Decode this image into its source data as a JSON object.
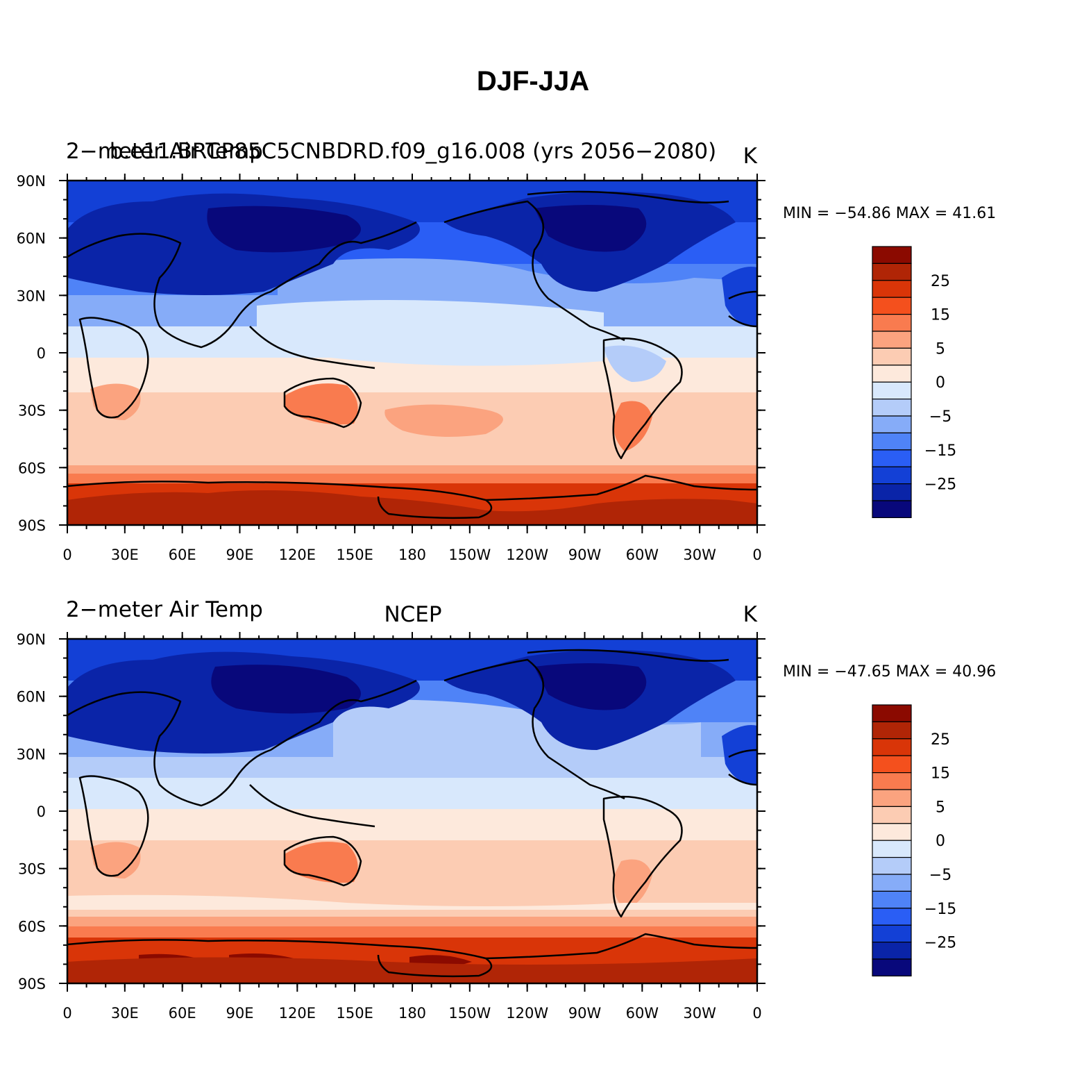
{
  "figure_title": "DJF-JJA",
  "colorscale": {
    "levels": [
      -30,
      -25,
      -20,
      -15,
      -10,
      -5,
      -2.5,
      0,
      2.5,
      5,
      10,
      15,
      20,
      25,
      30
    ],
    "colors": [
      "#08087b",
      "#0a24a8",
      "#1340d6",
      "#2a5ef5",
      "#4f83f7",
      "#86acf8",
      "#b4ccf9",
      "#d8e8fc",
      "#fde9dc",
      "#fcccb3",
      "#fba37f",
      "#f97b4f",
      "#f4501d",
      "#d93508",
      "#b02506",
      "#8b0a00"
    ],
    "labels": [
      "25",
      "15",
      "5",
      "0",
      "−5",
      "−15",
      "−25"
    ]
  },
  "axes": {
    "lat_ticks": [
      "90N",
      "60N",
      "30N",
      "0",
      "30S",
      "60S",
      "90S"
    ],
    "lon_ticks": [
      "0",
      "30E",
      "60E",
      "90E",
      "120E",
      "150E",
      "180",
      "150W",
      "120W",
      "90W",
      "60W",
      "30W",
      "0"
    ]
  },
  "panels": [
    {
      "left_title": "2−meter Air Temp",
      "center_title": "b.e11.BRCP85C5CNBDRD.f09_g16.008 (yrs 2056−2080)",
      "right_title": "K",
      "stats": "MIN = −54.86 MAX =   41.61",
      "min": -54.86,
      "max": 41.61
    },
    {
      "left_title": "2−meter Air Temp",
      "center_title": "NCEP",
      "right_title": "K",
      "stats": "MIN = −47.65 MAX =   40.96",
      "min": -47.65,
      "max": 40.96
    }
  ]
}
